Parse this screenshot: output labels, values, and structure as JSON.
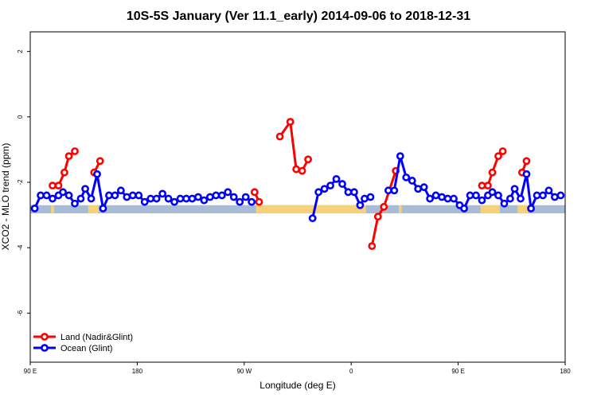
{
  "chart_data": {
    "type": "line",
    "title": "10S-5S January (Ver 11.1_early)   2014-09-06 to 2018-12-31",
    "xlabel": "Longitude (deg E)",
    "ylabel": "XCO2 - MLO trend (ppm)",
    "xlim": [
      0,
      360
    ],
    "ylim": [
      -7.5,
      2.6
    ],
    "x_ticks": [
      {
        "value": 0,
        "label": "90 E"
      },
      {
        "value": 72,
        "label": "180"
      },
      {
        "value": 144,
        "label": "90 W"
      },
      {
        "value": 216,
        "label": "0"
      },
      {
        "value": 288,
        "label": "90 E"
      },
      {
        "value": 360,
        "label": "180"
      }
    ],
    "y_ticks": [
      {
        "value": 2,
        "label": "2"
      },
      {
        "value": 0,
        "label": "0"
      },
      {
        "value": -2,
        "label": "-2"
      },
      {
        "value": -4,
        "label": "-4"
      },
      {
        "value": -6,
        "label": "-6"
      }
    ],
    "grid": false,
    "legend_position": "bottom-left",
    "band": {
      "y_top": -2.7,
      "y_bottom": -2.95,
      "ocean_color": "#a8bcd6",
      "land_color": "#f5d27a"
    },
    "land_segments": [
      [
        14,
        16
      ],
      [
        39,
        46
      ],
      [
        152,
        155
      ],
      [
        155,
        226
      ],
      [
        248,
        250
      ],
      [
        303,
        316
      ],
      [
        328,
        335
      ]
    ],
    "series": [
      {
        "name": "Land (Nadir&Glint)",
        "color": "#ff0000",
        "segments": [
          [
            [
              15,
              -2.1
            ],
            [
              19,
              -2.1
            ],
            [
              23,
              -1.7
            ],
            [
              26,
              -1.2
            ],
            [
              30,
              -1.05
            ]
          ],
          [
            [
              43,
              -1.7
            ],
            [
              47,
              -1.35
            ]
          ],
          [
            [
              151,
              -2.3
            ],
            [
              154,
              -2.6
            ]
          ],
          [
            [
              168,
              -0.6
            ],
            [
              175,
              -0.15
            ],
            [
              179,
              -1.6
            ],
            [
              183,
              -1.65
            ],
            [
              187,
              -1.3
            ]
          ],
          [
            [
              230,
              -3.95
            ],
            [
              234,
              -3.05
            ],
            [
              238,
              -2.75
            ],
            [
              246,
              -1.65
            ]
          ],
          [
            [
              304,
              -2.1
            ],
            [
              308,
              -2.1
            ],
            [
              311,
              -1.7
            ],
            [
              315,
              -1.2
            ],
            [
              318,
              -1.05
            ]
          ],
          [
            [
              331,
              -1.7
            ],
            [
              334,
              -1.35
            ]
          ]
        ]
      },
      {
        "name": "Ocean (Glint)",
        "color": "#0000ff",
        "segments": [
          [
            [
              3,
              -2.8
            ],
            [
              7,
              -2.4
            ],
            [
              11,
              -2.4
            ],
            [
              15,
              -2.5
            ],
            [
              19,
              -2.4
            ],
            [
              22,
              -2.3
            ],
            [
              26,
              -2.4
            ],
            [
              30,
              -2.65
            ],
            [
              34,
              -2.5
            ],
            [
              37,
              -2.2
            ],
            [
              41,
              -2.5
            ],
            [
              45,
              -1.75
            ],
            [
              49,
              -2.8
            ],
            [
              53,
              -2.4
            ],
            [
              57,
              -2.4
            ],
            [
              61,
              -2.25
            ],
            [
              65,
              -2.45
            ],
            [
              69,
              -2.4
            ],
            [
              73,
              -2.4
            ],
            [
              77,
              -2.6
            ],
            [
              81,
              -2.5
            ],
            [
              85,
              -2.5
            ],
            [
              89,
              -2.35
            ],
            [
              93,
              -2.5
            ],
            [
              97,
              -2.6
            ],
            [
              101,
              -2.5
            ],
            [
              105,
              -2.5
            ],
            [
              109,
              -2.5
            ],
            [
              113,
              -2.45
            ],
            [
              117,
              -2.55
            ],
            [
              121,
              -2.45
            ],
            [
              125,
              -2.4
            ],
            [
              129,
              -2.4
            ],
            [
              133,
              -2.3
            ],
            [
              137,
              -2.45
            ],
            [
              141,
              -2.6
            ],
            [
              145,
              -2.45
            ],
            [
              149,
              -2.6
            ]
          ],
          [
            [
              190,
              -3.1
            ],
            [
              194,
              -2.3
            ],
            [
              198,
              -2.2
            ],
            [
              202,
              -2.1
            ],
            [
              206,
              -1.9
            ],
            [
              210,
              -2.05
            ],
            [
              214,
              -2.3
            ],
            [
              218,
              -2.3
            ],
            [
              222,
              -2.7
            ],
            [
              225,
              -2.5
            ],
            [
              229,
              -2.45
            ]
          ],
          [
            [
              241,
              -2.25
            ],
            [
              245,
              -2.25
            ],
            [
              249,
              -1.2
            ],
            [
              253,
              -1.85
            ],
            [
              257,
              -1.95
            ],
            [
              261,
              -2.2
            ],
            [
              265,
              -2.15
            ],
            [
              269,
              -2.5
            ],
            [
              273,
              -2.4
            ],
            [
              277,
              -2.45
            ],
            [
              281,
              -2.5
            ],
            [
              285,
              -2.5
            ],
            [
              289,
              -2.7
            ],
            [
              292,
              -2.8
            ],
            [
              296,
              -2.4
            ],
            [
              300,
              -2.4
            ],
            [
              304,
              -2.55
            ],
            [
              308,
              -2.4
            ],
            [
              311,
              -2.3
            ],
            [
              315,
              -2.4
            ],
            [
              319,
              -2.65
            ],
            [
              323,
              -2.5
            ],
            [
              326,
              -2.2
            ],
            [
              330,
              -2.5
            ],
            [
              334,
              -1.75
            ],
            [
              337,
              -2.8
            ],
            [
              341,
              -2.4
            ],
            [
              345,
              -2.4
            ],
            [
              349,
              -2.25
            ],
            [
              353,
              -2.45
            ],
            [
              357,
              -2.4
            ]
          ]
        ]
      }
    ]
  }
}
